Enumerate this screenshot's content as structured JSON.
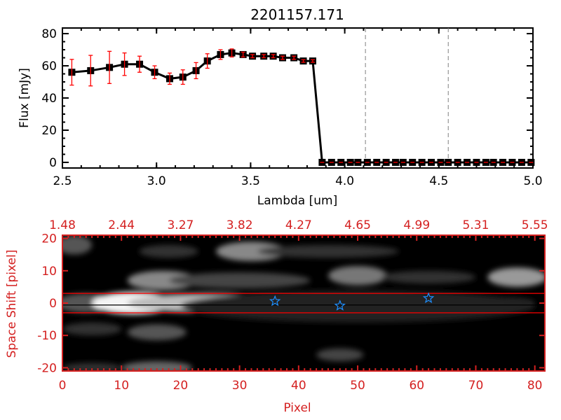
{
  "chart_data": [
    {
      "type": "line",
      "title": "2201157.171",
      "xlabel": "Lambda [um]",
      "ylabel": "Flux [mJy]",
      "xlim": [
        2.5,
        5.0
      ],
      "ylim": [
        -3.5,
        83.5
      ],
      "xticks": [
        "2.5",
        "3.0",
        "3.5",
        "4.0",
        "4.5",
        "5.0"
      ],
      "yticks": [
        "0",
        "20",
        "40",
        "60",
        "80"
      ],
      "grid": false,
      "series": [
        {
          "x": [
            2.55,
            2.65,
            2.75,
            2.83,
            2.91,
            2.99,
            3.07,
            3.14,
            3.21,
            3.27,
            3.34,
            3.4,
            3.46,
            3.51,
            3.57,
            3.62,
            3.67,
            3.73,
            3.78,
            3.83
          ],
          "y": [
            56,
            57,
            59,
            61,
            61,
            56,
            52,
            53,
            57,
            63,
            67,
            68,
            67,
            66,
            66,
            66,
            65,
            65,
            63,
            63
          ],
          "yerr": [
            8,
            9.5,
            10,
            7,
            5,
            4,
            3.5,
            4.5,
            5,
            4.5,
            3,
            2.5,
            1.5,
            1,
            1,
            1,
            1,
            1,
            0.8,
            0.8
          ],
          "color": "#000000",
          "errcolor": "#ff0000"
        },
        {
          "x": [
            3.88,
            3.93,
            3.98,
            4.03,
            4.07,
            4.12,
            4.17,
            4.22,
            4.27,
            4.31,
            4.36,
            4.41,
            4.46,
            4.51,
            4.55,
            4.6,
            4.65,
            4.7,
            4.75,
            4.79,
            4.84,
            4.89,
            4.94,
            4.99
          ],
          "y": [
            0,
            0,
            0,
            0,
            0,
            0,
            0,
            0,
            0,
            0,
            0,
            0,
            0,
            0,
            0,
            0,
            0,
            0,
            0,
            0,
            0,
            0,
            0,
            0
          ],
          "color": "#000000"
        }
      ],
      "vlines": {
        "x": [
          4.11,
          4.55
        ],
        "style": "dashed",
        "color": "#808080"
      }
    },
    {
      "type": "heatmap",
      "xlabel": "Pixel",
      "ylabel": "Space Shift [pixel]",
      "xlim": [
        0,
        81.7
      ],
      "ylim": [
        -21,
        21
      ],
      "xticks": [
        "0",
        "10",
        "20",
        "30",
        "40",
        "50",
        "60",
        "70",
        "80"
      ],
      "yticks": [
        "-20",
        "-10",
        "0",
        "10",
        "20"
      ],
      "top_xticks": [
        "1.48",
        "2.44",
        "3.27",
        "3.82",
        "4.27",
        "4.65",
        "4.99",
        "5.31",
        "5.55"
      ],
      "colormap": "grayscale",
      "axis_color": "#d42020",
      "hlines": [
        {
          "y": 3,
          "color": "#ff0000"
        },
        {
          "y": -3,
          "color": "#ff0000"
        },
        {
          "y": -0.6,
          "color": "#000000"
        }
      ],
      "markers": {
        "shape": "star",
        "color": "#1e8fff",
        "points": [
          [
            36,
            0.6
          ],
          [
            47,
            -0.8
          ],
          [
            62,
            1.5
          ]
        ]
      }
    }
  ]
}
